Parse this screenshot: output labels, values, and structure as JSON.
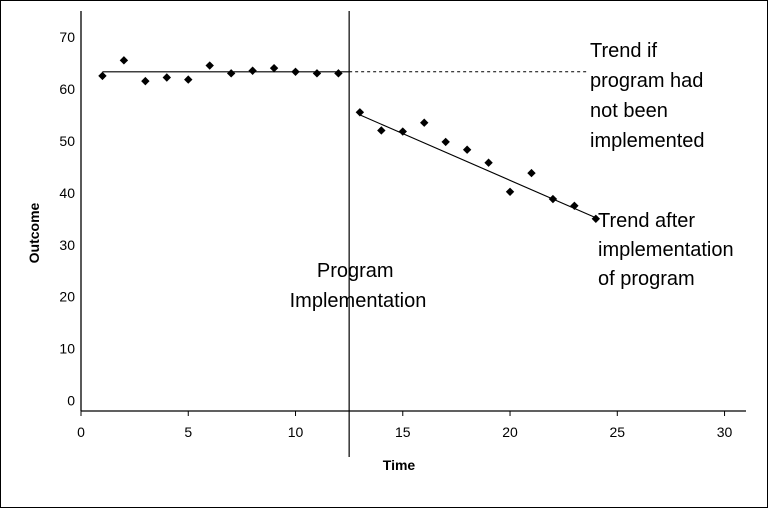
{
  "chart_data": {
    "type": "scatter",
    "xlabel": "Time",
    "ylabel": "Outcome",
    "xlim": [
      0,
      31
    ],
    "ylim": [
      -2,
      75
    ],
    "xticks": [
      0,
      5,
      10,
      15,
      20,
      25,
      30
    ],
    "yticks": [
      0,
      10,
      20,
      30,
      40,
      50,
      60,
      70
    ],
    "grid": false,
    "intervention_x": 12.5,
    "series": [
      {
        "points": [
          [
            1,
            62.5
          ],
          [
            2,
            65.5
          ],
          [
            3,
            61.5
          ],
          [
            4,
            62.2
          ],
          [
            5,
            61.8
          ],
          [
            6,
            64.5
          ],
          [
            7,
            63.0
          ],
          [
            8,
            63.5
          ],
          [
            9,
            64.0
          ],
          [
            10,
            63.3
          ],
          [
            11,
            63.0
          ],
          [
            12,
            63.0
          ],
          [
            13,
            55.5
          ],
          [
            14,
            52.0
          ],
          [
            15,
            51.8
          ],
          [
            16,
            53.5
          ],
          [
            17,
            49.8
          ],
          [
            18,
            48.3
          ],
          [
            19,
            45.8
          ],
          [
            20,
            40.2
          ],
          [
            21,
            43.8
          ],
          [
            22,
            38.8
          ],
          [
            23,
            37.5
          ],
          [
            24,
            35.0
          ]
        ]
      }
    ],
    "lines": [
      {
        "id": "pre-trend",
        "style": "solid",
        "x": [
          1,
          12.5
        ],
        "y": [
          63.3,
          63.3
        ]
      },
      {
        "id": "counterfactual-trend",
        "style": "dashed",
        "x": [
          12.5,
          23.6
        ],
        "y": [
          63.3,
          63.3
        ]
      },
      {
        "id": "post-trend",
        "style": "solid",
        "x": [
          13,
          24
        ],
        "y": [
          55.0,
          35.2
        ]
      }
    ],
    "annotations": {
      "implementation": [
        "Program",
        "Implementation"
      ],
      "counterfactual": [
        "Trend if",
        "program had",
        "not been",
        "implemented"
      ],
      "post_trend": [
        "Trend after",
        "implementation",
        "of program"
      ]
    }
  }
}
